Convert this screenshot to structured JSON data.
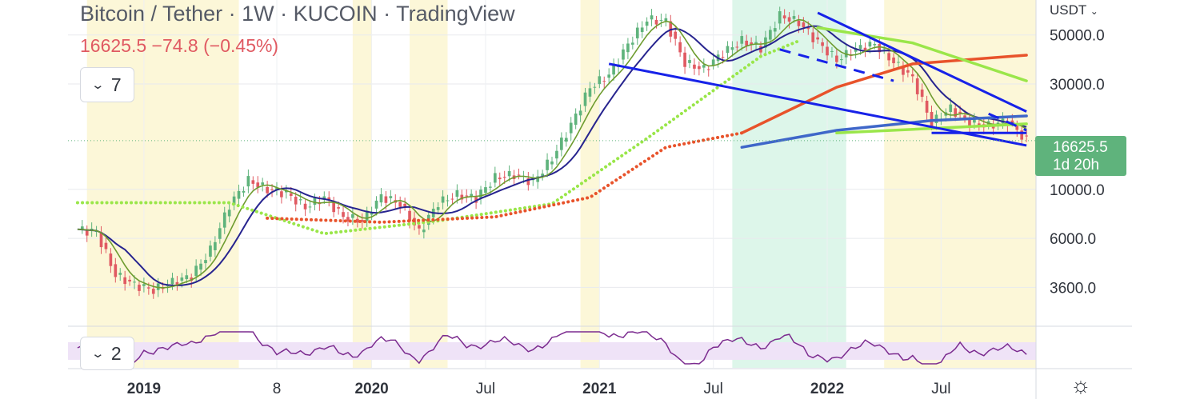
{
  "header": {
    "title": "Bitcoin / Tether · 1W · KUCOIN · TradingView",
    "price": "16625.5",
    "change": "−74.8",
    "change_pct": "(−0.45%)"
  },
  "indicator_toggle": {
    "count": "7"
  },
  "rsi_toggle": {
    "count": "2"
  },
  "currency": "USDT",
  "last_price_tag": {
    "price": "16625.5",
    "countdown": "1d 20h"
  },
  "colors": {
    "up": "#5fb37c",
    "down": "#e05a62",
    "trendline": "#1722e8",
    "ema_red": "#e8532b",
    "sma_green": "#9ae64a",
    "ma_blue": "#3f67c9",
    "ma_purple": "#27248f",
    "ma_olive": "#6e9c2f",
    "rsi": "#7b2b8f",
    "highlight_yellow": "#fcf7d8",
    "highlight_green": "#ddf6ea"
  },
  "chart_data": {
    "type": "candlestick",
    "title": "Bitcoin / Tether · 1W · KUCOIN · TradingView",
    "scale": "log",
    "y_ticks": [
      50000.0,
      30000.0,
      10000.0,
      6000.0,
      3600.0
    ],
    "y_tick_labels": [
      "50000.0",
      "30000.0",
      "10000.0",
      "6000.0",
      "3600.0"
    ],
    "x_tick_labels": [
      "2019",
      "8",
      "2020",
      "Jul",
      "2021",
      "Jul",
      "2022",
      "Jul"
    ],
    "x_ticks": [
      "2019-01",
      "2019-08",
      "2020-01",
      "2020-07",
      "2021-01",
      "2021-07",
      "2022-01",
      "2022-07"
    ],
    "x_range": [
      "2018-09",
      "2022-11"
    ],
    "ylim": [
      2400,
      72000
    ],
    "last_price": 16625.5,
    "close_series": [
      [
        "2018-09",
        6600
      ],
      [
        "2018-10",
        6400
      ],
      [
        "2018-11",
        4100
      ],
      [
        "2018-12",
        3700
      ],
      [
        "2019-01",
        3500
      ],
      [
        "2019-02",
        3800
      ],
      [
        "2019-03",
        4050
      ],
      [
        "2019-04",
        5300
      ],
      [
        "2019-05",
        8500
      ],
      [
        "2019-06",
        11000
      ],
      [
        "2019-07",
        10000
      ],
      [
        "2019-08",
        9600
      ],
      [
        "2019-09",
        8300
      ],
      [
        "2019-10",
        9200
      ],
      [
        "2019-11",
        7500
      ],
      [
        "2019-12",
        7200
      ],
      [
        "2020-01",
        9300
      ],
      [
        "2020-02",
        8600
      ],
      [
        "2020-03",
        6400
      ],
      [
        "2020-04",
        8700
      ],
      [
        "2020-05",
        9450
      ],
      [
        "2020-06",
        9150
      ],
      [
        "2020-07",
        11300
      ],
      [
        "2020-08",
        11650
      ],
      [
        "2020-09",
        10800
      ],
      [
        "2020-10",
        13800
      ],
      [
        "2020-11",
        19600
      ],
      [
        "2020-12",
        29000
      ],
      [
        "2021-01",
        33100
      ],
      [
        "2021-02",
        45200
      ],
      [
        "2021-03",
        58800
      ],
      [
        "2021-04",
        57700
      ],
      [
        "2021-05",
        37300
      ],
      [
        "2021-06",
        35000
      ],
      [
        "2021-07",
        41500
      ],
      [
        "2021-08",
        47100
      ],
      [
        "2021-09",
        43800
      ],
      [
        "2021-10",
        61300
      ],
      [
        "2021-11",
        57000
      ],
      [
        "2021-12",
        46300
      ],
      [
        "2022-01",
        38500
      ],
      [
        "2022-02",
        43200
      ],
      [
        "2022-03",
        45500
      ],
      [
        "2022-04",
        37700
      ],
      [
        "2022-05",
        31800
      ],
      [
        "2022-06",
        19950
      ],
      [
        "2022-07",
        23300
      ],
      [
        "2022-08",
        20050
      ],
      [
        "2022-09",
        19400
      ],
      [
        "2022-10",
        20500
      ],
      [
        "2022-11",
        16625.5
      ]
    ],
    "moving_averages": [
      {
        "style": "dotted",
        "color": "#9ae64a",
        "points": [
          [
            "2018-09",
            8700
          ],
          [
            "2019-05",
            8700
          ],
          [
            "2019-10",
            6300
          ],
          [
            "2020-04",
            7200
          ],
          [
            "2020-10",
            8600
          ],
          [
            "2021-03",
            17000
          ],
          [
            "2021-09",
            40000
          ],
          [
            "2021-11",
            47000
          ]
        ]
      },
      {
        "style": "dotted",
        "color": "#e8532b",
        "points": [
          [
            "2019-07",
            7400
          ],
          [
            "2020-01",
            7100
          ],
          [
            "2020-07",
            7500
          ],
          [
            "2020-12",
            9200
          ],
          [
            "2021-04",
            15500
          ],
          [
            "2021-08",
            18000
          ]
        ]
      },
      {
        "style": "solid",
        "color": "#e8532b",
        "points": [
          [
            "2021-08",
            18000
          ],
          [
            "2022-01",
            29000
          ],
          [
            "2022-05",
            37000
          ],
          [
            "2022-11",
            40500
          ]
        ]
      },
      {
        "style": "solid",
        "color": "#9ae64a",
        "points": [
          [
            "2021-12",
            54000
          ],
          [
            "2022-05",
            46000
          ],
          [
            "2022-11",
            31000
          ]
        ]
      },
      {
        "style": "solid",
        "color": "#3f67c9",
        "points": [
          [
            "2021-08",
            15500
          ],
          [
            "2022-01",
            18500
          ],
          [
            "2022-06",
            20500
          ],
          [
            "2022-11",
            21500
          ]
        ]
      },
      {
        "style": "solid",
        "color": "#9ae64a",
        "points": [
          [
            "2022-01",
            18000
          ],
          [
            "2022-11",
            19800
          ]
        ]
      }
    ],
    "trendlines": [
      {
        "style": "solid",
        "points": [
          [
            "2021-01",
            37000
          ],
          [
            "2022-11",
            15800
          ]
        ]
      },
      {
        "style": "solid",
        "points": [
          [
            "2021-12",
            63000
          ],
          [
            "2022-11",
            22500
          ]
        ]
      },
      {
        "style": "dashed",
        "points": [
          [
            "2021-10",
            43000
          ],
          [
            "2022-04",
            31000
          ]
        ]
      },
      {
        "style": "dashed",
        "points": [
          [
            "2022-09",
            22000
          ],
          [
            "2022-11",
            18500
          ]
        ]
      },
      {
        "style": "solid",
        "points": [
          [
            "2022-06",
            18000
          ],
          [
            "2022-11",
            18000
          ]
        ]
      }
    ],
    "highlight_bands": [
      {
        "color": "yellow",
        "from": "2018-10",
        "to": "2019-05"
      },
      {
        "color": "yellow",
        "from": "2019-12",
        "to": "2019-12"
      },
      {
        "color": "yellow",
        "from": "2020-03",
        "to": "2020-04"
      },
      {
        "color": "yellow",
        "from": "2020-12",
        "to": "2020-12"
      },
      {
        "color": "green",
        "from": "2021-08",
        "to": "2022-01"
      },
      {
        "color": "yellow",
        "from": "2022-04",
        "to": "2022-11"
      }
    ],
    "rsi": {
      "label_count": "2"
    }
  }
}
